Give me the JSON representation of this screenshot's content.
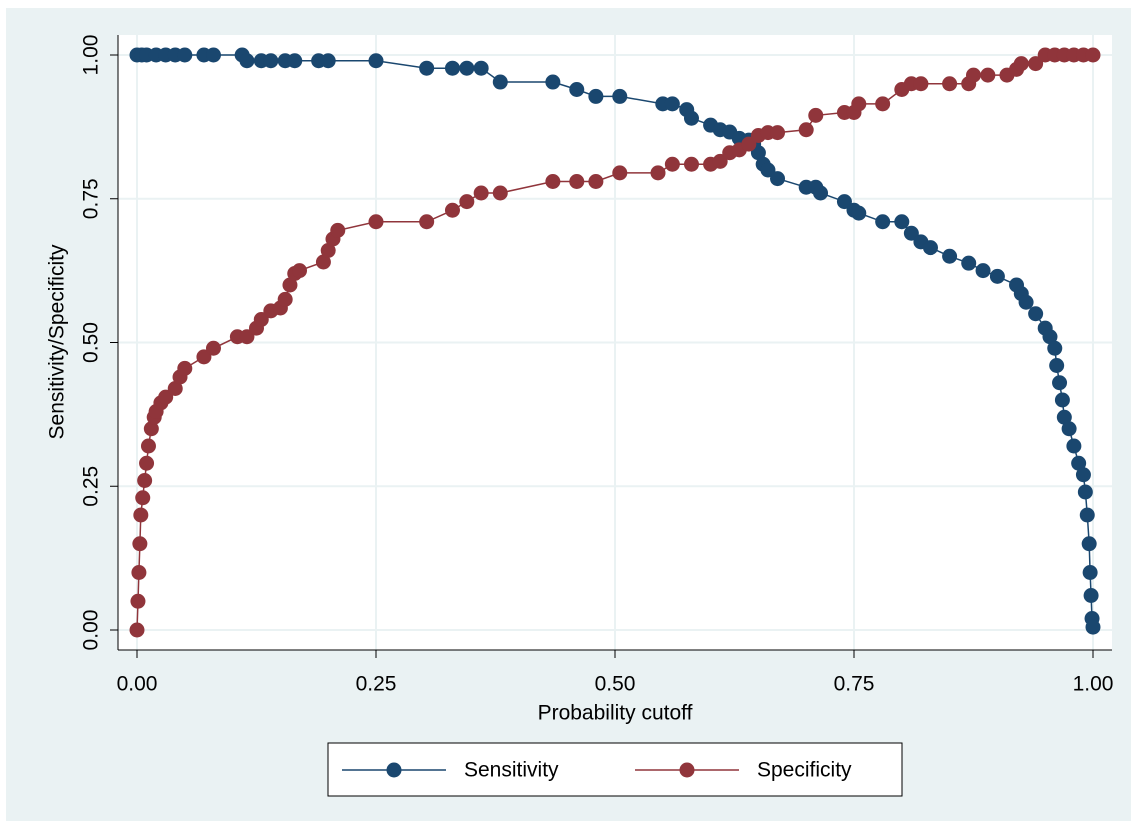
{
  "chart_data": {
    "type": "line",
    "x_label": "Probability cutoff",
    "y_label": "Sensitivity/Specificity",
    "xlim": [
      0,
      1
    ],
    "ylim": [
      0,
      1
    ],
    "xticks": [
      {
        "value": 0,
        "label": "0.00"
      },
      {
        "value": 0.25,
        "label": "0.25"
      },
      {
        "value": 0.5,
        "label": "0.50"
      },
      {
        "value": 0.75,
        "label": "0.75"
      },
      {
        "value": 1,
        "label": "1.00"
      }
    ],
    "yticks": [
      {
        "value": 0,
        "label": "0.00"
      },
      {
        "value": 0.25,
        "label": "0.25"
      },
      {
        "value": 0.5,
        "label": "0.50"
      },
      {
        "value": 0.75,
        "label": "0.75"
      },
      {
        "value": 1,
        "label": "1.00"
      }
    ],
    "grid": true,
    "legend_position": "bottom",
    "series": [
      {
        "name": "Sensitivity",
        "color": "#1a476f",
        "x": [
          0,
          0.005,
          0.01,
          0.02,
          0.03,
          0.04,
          0.05,
          0.07,
          0.08,
          0.11,
          0.115,
          0.13,
          0.14,
          0.155,
          0.165,
          0.19,
          0.2,
          0.25,
          0.303,
          0.33,
          0.345,
          0.36,
          0.38,
          0.435,
          0.46,
          0.48,
          0.505,
          0.55,
          0.56,
          0.575,
          0.58,
          0.6,
          0.61,
          0.62,
          0.63,
          0.64,
          0.645,
          0.65,
          0.655,
          0.66,
          0.67,
          0.7,
          0.71,
          0.715,
          0.74,
          0.75,
          0.755,
          0.78,
          0.8,
          0.81,
          0.82,
          0.83,
          0.85,
          0.87,
          0.885,
          0.9,
          0.92,
          0.925,
          0.93,
          0.94,
          0.95,
          0.955,
          0.96,
          0.962,
          0.965,
          0.968,
          0.97,
          0.975,
          0.98,
          0.985,
          0.99,
          0.992,
          0.994,
          0.996,
          0.997,
          0.998,
          0.999,
          1
        ],
        "values": [
          1,
          1,
          1,
          1,
          1,
          1,
          1,
          1,
          1,
          1,
          0.99,
          0.99,
          0.99,
          0.99,
          0.99,
          0.99,
          0.99,
          0.99,
          0.977,
          0.977,
          0.977,
          0.977,
          0.953,
          0.953,
          0.94,
          0.928,
          0.928,
          0.915,
          0.915,
          0.905,
          0.89,
          0.878,
          0.87,
          0.866,
          0.855,
          0.852,
          0.845,
          0.83,
          0.81,
          0.8,
          0.785,
          0.77,
          0.77,
          0.76,
          0.745,
          0.73,
          0.725,
          0.71,
          0.71,
          0.69,
          0.675,
          0.665,
          0.65,
          0.638,
          0.625,
          0.615,
          0.6,
          0.585,
          0.57,
          0.55,
          0.525,
          0.51,
          0.49,
          0.46,
          0.43,
          0.4,
          0.37,
          0.35,
          0.32,
          0.29,
          0.27,
          0.24,
          0.2,
          0.15,
          0.1,
          0.06,
          0.02,
          0.005
        ]
      },
      {
        "name": "Specificity",
        "color": "#90353b",
        "x": [
          0,
          0.001,
          0.002,
          0.003,
          0.004,
          0.006,
          0.008,
          0.01,
          0.012,
          0.015,
          0.018,
          0.02,
          0.025,
          0.03,
          0.04,
          0.045,
          0.05,
          0.07,
          0.08,
          0.105,
          0.115,
          0.125,
          0.13,
          0.14,
          0.15,
          0.155,
          0.16,
          0.165,
          0.17,
          0.195,
          0.2,
          0.205,
          0.21,
          0.25,
          0.303,
          0.33,
          0.345,
          0.36,
          0.38,
          0.435,
          0.46,
          0.48,
          0.505,
          0.545,
          0.56,
          0.58,
          0.6,
          0.61,
          0.62,
          0.63,
          0.64,
          0.65,
          0.66,
          0.67,
          0.7,
          0.71,
          0.74,
          0.75,
          0.755,
          0.78,
          0.8,
          0.81,
          0.82,
          0.85,
          0.87,
          0.875,
          0.89,
          0.91,
          0.92,
          0.925,
          0.94,
          0.95,
          0.96,
          0.97,
          0.98,
          0.99,
          1
        ],
        "values": [
          0,
          0.05,
          0.1,
          0.15,
          0.2,
          0.23,
          0.26,
          0.29,
          0.32,
          0.35,
          0.37,
          0.38,
          0.395,
          0.405,
          0.42,
          0.44,
          0.455,
          0.475,
          0.49,
          0.51,
          0.51,
          0.525,
          0.54,
          0.555,
          0.56,
          0.575,
          0.6,
          0.62,
          0.625,
          0.64,
          0.66,
          0.68,
          0.695,
          0.71,
          0.71,
          0.73,
          0.745,
          0.76,
          0.76,
          0.78,
          0.78,
          0.78,
          0.795,
          0.795,
          0.81,
          0.81,
          0.81,
          0.815,
          0.83,
          0.835,
          0.845,
          0.86,
          0.865,
          0.865,
          0.87,
          0.895,
          0.9,
          0.9,
          0.915,
          0.915,
          0.94,
          0.95,
          0.95,
          0.95,
          0.95,
          0.965,
          0.965,
          0.965,
          0.975,
          0.985,
          0.985,
          1,
          1,
          1,
          1,
          1,
          1
        ]
      }
    ]
  }
}
